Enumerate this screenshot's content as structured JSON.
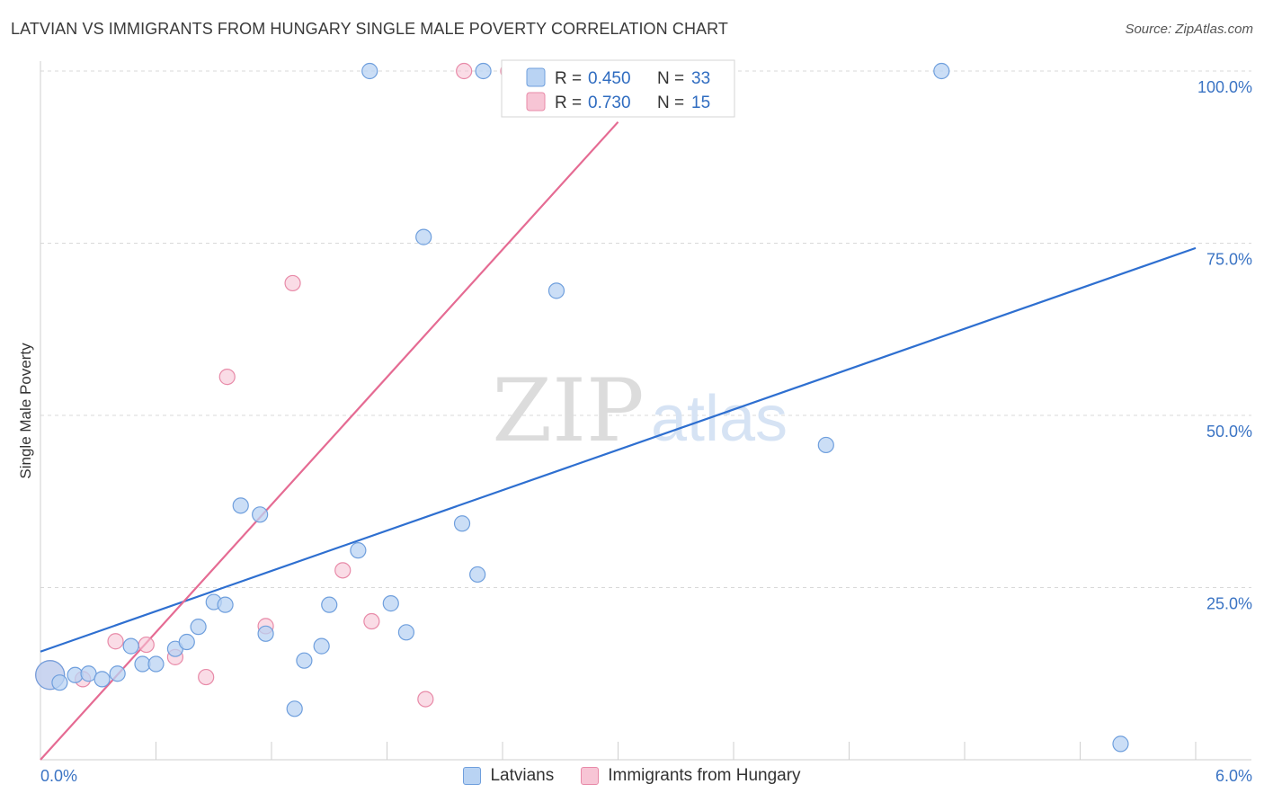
{
  "header": {
    "title": "LATVIAN VS IMMIGRANTS FROM HUNGARY SINGLE MALE POVERTY CORRELATION CHART",
    "source": "Source: ZipAtlas.com"
  },
  "watermark": {
    "zip": "ZIP",
    "atlas": "atlas"
  },
  "colors": {
    "latvians_fill": "#b9d3f3",
    "latvians_stroke": "#6f9fdd",
    "latvians_line": "#2e6fd0",
    "hungary_fill": "#f7c5d5",
    "hungary_stroke": "#e88aa8",
    "hungary_line": "#e56b93",
    "axis_label": "#3b74c4",
    "grid": "#d9d9d9"
  },
  "legend": {
    "rows": [
      {
        "r_label": "R = ",
        "r_value": "0.450",
        "n_label": "N = ",
        "n_value": "33"
      },
      {
        "r_label": "R = ",
        "r_value": "0.730",
        "n_label": "N = ",
        "n_value": "15"
      }
    ]
  },
  "chart_data": {
    "type": "scatter",
    "title": "LATVIAN VS IMMIGRANTS FROM HUNGARY SINGLE MALE POVERTY CORRELATION CHART",
    "xlabel": "",
    "ylabel": "Single Male Poverty",
    "xlim": [
      0,
      6
    ],
    "ylim": [
      0,
      100
    ],
    "x_tick_labels": [
      "0.0%",
      "6.0%"
    ],
    "y_ticks": [
      25,
      50,
      75,
      100
    ],
    "y_tick_labels": [
      "25.0%",
      "50.0%",
      "75.0%",
      "100.0%"
    ],
    "grid": true,
    "legend_position": "top-center",
    "series": [
      {
        "name": "Latvians",
        "r": 0.45,
        "n": 33,
        "trend": {
          "x": [
            0,
            6
          ],
          "y": [
            15.7,
            74.3
          ]
        },
        "points": [
          {
            "x": 0.05,
            "y": 12.3,
            "big": true
          },
          {
            "x": 0.1,
            "y": 11.2
          },
          {
            "x": 0.18,
            "y": 12.3
          },
          {
            "x": 0.25,
            "y": 12.5
          },
          {
            "x": 0.32,
            "y": 11.7
          },
          {
            "x": 0.4,
            "y": 12.5
          },
          {
            "x": 0.47,
            "y": 16.5
          },
          {
            "x": 0.53,
            "y": 13.9
          },
          {
            "x": 0.6,
            "y": 13.9
          },
          {
            "x": 0.7,
            "y": 16.1
          },
          {
            "x": 0.76,
            "y": 17.1
          },
          {
            "x": 0.82,
            "y": 19.3
          },
          {
            "x": 0.9,
            "y": 22.9
          },
          {
            "x": 0.96,
            "y": 22.5
          },
          {
            "x": 1.04,
            "y": 36.9
          },
          {
            "x": 1.14,
            "y": 35.6
          },
          {
            "x": 1.17,
            "y": 18.3
          },
          {
            "x": 1.32,
            "y": 7.4
          },
          {
            "x": 1.37,
            "y": 14.4
          },
          {
            "x": 1.46,
            "y": 16.5
          },
          {
            "x": 1.5,
            "y": 22.5
          },
          {
            "x": 1.65,
            "y": 30.4
          },
          {
            "x": 1.71,
            "y": 100
          },
          {
            "x": 1.82,
            "y": 22.7
          },
          {
            "x": 1.9,
            "y": 18.5
          },
          {
            "x": 1.99,
            "y": 75.9
          },
          {
            "x": 2.19,
            "y": 34.3
          },
          {
            "x": 2.27,
            "y": 26.9
          },
          {
            "x": 2.3,
            "y": 100
          },
          {
            "x": 2.68,
            "y": 68.1
          },
          {
            "x": 4.08,
            "y": 45.7
          },
          {
            "x": 4.68,
            "y": 100
          },
          {
            "x": 5.61,
            "y": 2.3
          }
        ]
      },
      {
        "name": "Immigrants from Hungary",
        "r": 0.73,
        "n": 15,
        "trend": {
          "x": [
            0,
            3.0
          ],
          "y": [
            0,
            92.6
          ]
        },
        "points": [
          {
            "x": 0.05,
            "y": 12.3,
            "big": true
          },
          {
            "x": 0.22,
            "y": 11.7
          },
          {
            "x": 0.39,
            "y": 17.2
          },
          {
            "x": 0.55,
            "y": 16.7
          },
          {
            "x": 0.7,
            "y": 14.9
          },
          {
            "x": 0.86,
            "y": 12.0
          },
          {
            "x": 0.97,
            "y": 55.6
          },
          {
            "x": 1.17,
            "y": 19.4
          },
          {
            "x": 1.31,
            "y": 69.2
          },
          {
            "x": 1.57,
            "y": 27.5
          },
          {
            "x": 1.72,
            "y": 20.1
          },
          {
            "x": 2.0,
            "y": 8.8
          },
          {
            "x": 2.2,
            "y": 100
          },
          {
            "x": 2.43,
            "y": 100
          },
          {
            "x": 2.86,
            "y": 100
          }
        ]
      }
    ]
  }
}
